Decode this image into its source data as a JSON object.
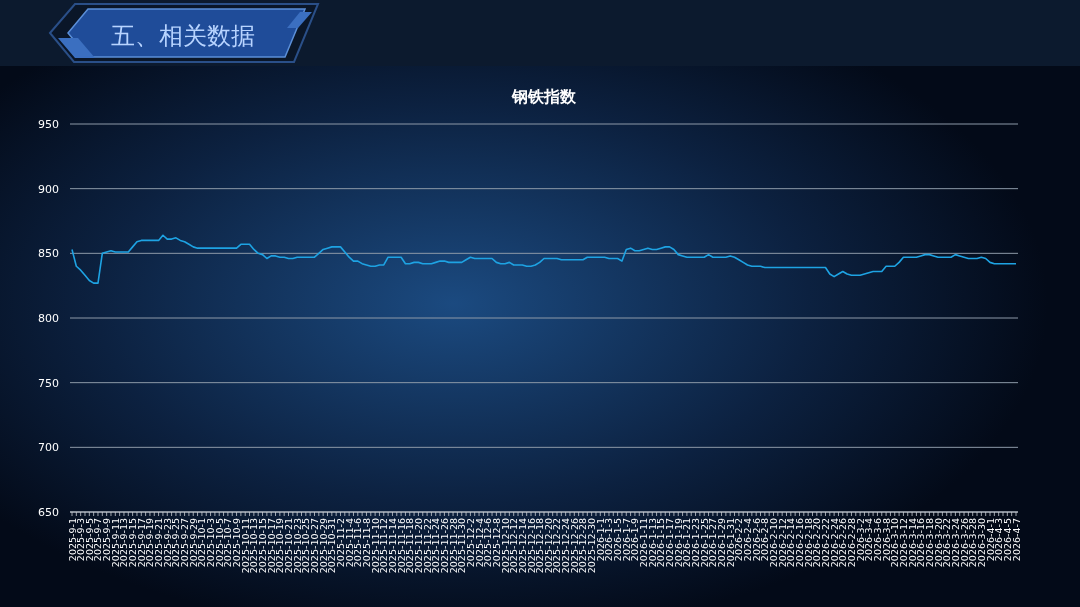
{
  "chart_data": {
    "type": "line",
    "title": "钢铁指数",
    "annotations": [
      "五、相关数据"
    ],
    "categories": [
      "2025-9-1",
      null,
      "2025-9-3",
      null,
      "2025-9-5",
      null,
      "2025-9-7",
      null,
      "2025-9-9",
      null,
      "2025-9-11",
      null,
      "2025-9-13",
      null,
      "2025-9-15",
      null,
      "2025-9-17",
      null,
      "2025-9-19",
      null,
      "2025-9-21",
      null,
      "2025-9-23",
      null,
      "2025-9-25",
      null,
      "2025-9-27",
      null,
      "2025-9-29",
      null,
      "2025-10-1",
      null,
      "2025-10-3",
      null,
      "2025-10-5",
      null,
      "2025-10-7",
      null,
      "2025-10-9",
      null,
      "2025-10-11",
      null,
      "2025-10-13",
      null,
      "2025-10-15",
      null,
      "2025-10-17",
      null,
      "2025-10-19",
      null,
      "2025-10-21",
      null,
      "2025-10-23",
      null,
      "2025-10-25",
      null,
      "2025-10-27",
      null,
      "2025-10-29",
      null,
      "2025-10-31",
      null,
      "2025-11-2",
      null,
      "2025-11-4",
      null,
      "2025-11-6",
      null,
      "2025-11-8",
      null,
      "2025-11-10",
      null,
      "2025-11-12",
      null,
      "2025-11-14",
      null,
      "2025-11-16",
      null,
      "2025-11-18",
      null,
      "2025-11-20",
      null,
      "2025-11-22",
      null,
      "2025-11-24",
      null,
      "2025-11-26",
      null,
      "2025-11-28",
      null,
      "2025-11-30",
      null,
      "2025-12-2",
      null,
      "2025-12-4",
      null,
      "2025-12-6",
      null,
      "2025-12-8",
      null,
      "2025-12-10",
      null,
      "2025-12-12",
      null,
      "2025-12-14",
      null,
      "2025-12-16",
      null,
      "2025-12-18",
      null,
      "2025-12-20",
      null,
      "2025-12-22",
      null,
      "2025-12-24",
      null,
      "2025-12-26",
      null,
      "2025-12-28",
      null,
      "2025-12-30",
      null,
      "2026-1-1",
      null,
      "2026-1-3",
      null,
      "2026-1-5",
      null,
      "2026-1-7",
      null,
      "2026-1-9",
      null,
      "2026-1-11",
      null,
      "2026-1-13",
      null,
      "2026-1-15",
      null,
      "2026-1-17",
      null,
      "2026-1-19",
      null,
      "2026-1-21",
      null,
      "2026-1-23",
      null,
      "2026-1-25",
      null,
      "2026-1-27",
      null,
      "2026-1-29",
      null,
      "2026-1-31",
      null,
      "2026-2-2",
      null,
      "2026-2-4",
      null,
      "2026-2-6",
      null,
      "2026-2-8",
      null,
      "2026-2-10",
      null,
      "2026-2-12",
      null,
      "2026-2-14",
      null,
      "2026-2-16",
      null,
      "2026-2-18",
      null,
      "2026-2-20",
      null,
      "2026-2-22",
      null,
      "2026-2-24",
      null,
      "2026-2-26",
      null,
      "2026-2-28",
      null,
      "2026-3-2",
      null,
      "2026-3-4",
      null,
      "2026-3-6",
      null,
      "2026-3-8",
      null,
      "2026-3-10",
      null,
      "2026-3-12",
      null,
      "2026-3-14",
      null,
      "2026-3-16",
      null,
      "2026-3-18",
      null,
      "2026-3-20",
      null,
      "2026-3-22",
      null,
      "2026-3-24",
      null,
      "2026-3-26",
      null,
      "2026-3-28",
      null,
      "2026-3-30",
      null,
      "2026-4-1",
      null,
      "2026-4-3",
      null,
      "2026-4-5",
      null,
      "2026-4-7"
    ],
    "series": [
      {
        "color": "#1ea3e3",
        "values": [
          853,
          840,
          837,
          833,
          829,
          827,
          827,
          850,
          851,
          852,
          851,
          851,
          851,
          851,
          855,
          859,
          860,
          860,
          860,
          860,
          860,
          864,
          861,
          861,
          862,
          860,
          859,
          857,
          855,
          854,
          854,
          854,
          854,
          854,
          854,
          854,
          854,
          854,
          854,
          857,
          857,
          857,
          853,
          850,
          849,
          846,
          848,
          848,
          847,
          847,
          846,
          846,
          847,
          847,
          847,
          847,
          847,
          850,
          853,
          854,
          855,
          855,
          855,
          851,
          847,
          844,
          844,
          842,
          841,
          840,
          840,
          841,
          841,
          847,
          847,
          847,
          847,
          842,
          842,
          843,
          843,
          842,
          842,
          842,
          843,
          844,
          844,
          843,
          843,
          843,
          843,
          845,
          847,
          846,
          846,
          846,
          846,
          846,
          843,
          842,
          842,
          843,
          841,
          841,
          841,
          840,
          840,
          841,
          843,
          846,
          846,
          846,
          846,
          845,
          845,
          845,
          845,
          845,
          845,
          847,
          847,
          847,
          847,
          847,
          846,
          846,
          846,
          844,
          853,
          854,
          852,
          852,
          853,
          854,
          853,
          853,
          854,
          855,
          855,
          853,
          849,
          848,
          847,
          847,
          847,
          847,
          847,
          849,
          847,
          847,
          847,
          847,
          848,
          847,
          845,
          843,
          841,
          840,
          840,
          840,
          839,
          839,
          839,
          839,
          839,
          839,
          839,
          839,
          839,
          839,
          839,
          839,
          839,
          839,
          839,
          834,
          832,
          834,
          836,
          834,
          833,
          833,
          833,
          834,
          835,
          836,
          836,
          836,
          840,
          840,
          840,
          843,
          847,
          847,
          847,
          847,
          848,
          849,
          849,
          848,
          847,
          847,
          847,
          847,
          849,
          848,
          847,
          846,
          846,
          846,
          847,
          846,
          843,
          842,
          842,
          842,
          842,
          842,
          842
        ]
      }
    ],
    "ylim": [
      650,
      950
    ],
    "yticks": [
      650,
      700,
      750,
      800,
      850,
      900,
      950
    ],
    "grid": "y",
    "marker": "none",
    "line_style": "solid"
  }
}
